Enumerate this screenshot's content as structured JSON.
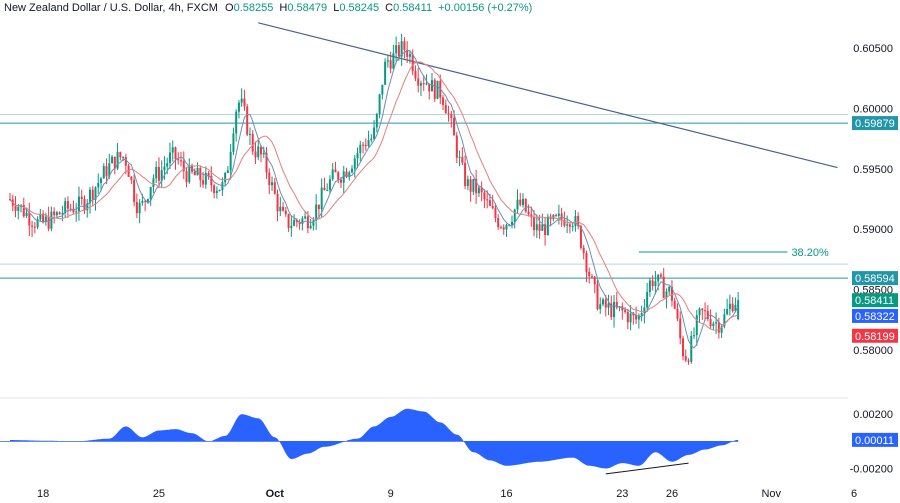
{
  "header": {
    "symbol": "New Zealand Dollar / U.S. Dollar, 4h, FXCM",
    "o_label": "O",
    "o_value": "0.58255",
    "h_label": "H",
    "h_value": "0.58479",
    "l_label": "L",
    "l_value": "0.58245",
    "c_label": "C",
    "c_value": "0.58411",
    "change": "+0.00156 (+0.27%)"
  },
  "colors": {
    "up": "#089981",
    "down": "#f23645",
    "level_line": "#2196a8",
    "trend_line": "#4a6387",
    "ma_fast": "#6b8fb5",
    "ma_slow": "#e57f7f",
    "oscillator": "#2962ff"
  },
  "chart_data": [
    {
      "type": "candlestick",
      "title": "New Zealand Dollar / U.S. Dollar, 4h, FXCM",
      "x_ticks": [
        "18",
        "25",
        "Oct",
        "9",
        "16",
        "23",
        "26",
        "Nov",
        "6"
      ],
      "y_ticks": [
        "0.60500",
        "0.60000",
        "0.59500",
        "0.59000",
        "0.58500",
        "0.58000"
      ],
      "ylim": [
        0.5765,
        0.6075
      ],
      "grid": false,
      "anchors": [
        {
          "x": "Sep 16",
          "price": 0.5925
        },
        {
          "x": "Sep 18",
          "price": 0.5905
        },
        {
          "x": "Sep 20",
          "price": 0.5918
        },
        {
          "x": "Sep 23",
          "price": 0.596
        },
        {
          "x": "Sep 24",
          "price": 0.5918
        },
        {
          "x": "Sep 25",
          "price": 0.5945
        },
        {
          "x": "Sep 26",
          "price": 0.596
        },
        {
          "x": "Sep 27",
          "price": 0.5945
        },
        {
          "x": "Sep 29",
          "price": 0.5935
        },
        {
          "x": "Sep 30",
          "price": 0.6005
        },
        {
          "x": "Oct 1",
          "price": 0.5965
        },
        {
          "x": "Oct 3",
          "price": 0.5905
        },
        {
          "x": "Oct 4",
          "price": 0.5908
        },
        {
          "x": "Oct 6",
          "price": 0.5945
        },
        {
          "x": "Oct 8",
          "price": 0.5975
        },
        {
          "x": "Oct 9",
          "price": 0.604
        },
        {
          "x": "Oct 10",
          "price": 0.605
        },
        {
          "x": "Oct 11",
          "price": 0.6025
        },
        {
          "x": "Oct 12",
          "price": 0.6015
        },
        {
          "x": "Oct 14",
          "price": 0.5935
        },
        {
          "x": "Oct 16",
          "price": 0.5905
        },
        {
          "x": "Oct 17",
          "price": 0.592
        },
        {
          "x": "Oct 18",
          "price": 0.59
        },
        {
          "x": "Oct 20",
          "price": 0.591
        },
        {
          "x": "Oct 22",
          "price": 0.5835
        },
        {
          "x": "Oct 23",
          "price": 0.5832
        },
        {
          "x": "Oct 24",
          "price": 0.5825
        },
        {
          "x": "Oct 25",
          "price": 0.5858
        },
        {
          "x": "Oct 26",
          "price": 0.5848
        },
        {
          "x": "Oct 27",
          "price": 0.5795
        },
        {
          "x": "Oct 28",
          "price": 0.583
        },
        {
          "x": "Oct 29",
          "price": 0.5822
        },
        {
          "x": "Oct 30",
          "price": 0.5841
        }
      ],
      "levels": [
        {
          "price": 0.59879,
          "label": "0.59879"
        },
        {
          "price": 0.58594,
          "label": "0.58594"
        }
      ],
      "faint_levels": [
        0.5995,
        0.5871
      ],
      "fib": {
        "label": "38.20%",
        "price": 0.5881,
        "from": "Oct 24",
        "to": "Nov 5"
      },
      "trendline": {
        "from": {
          "x": "Oct 1",
          "price": 0.6071
        },
        "to": {
          "x": "Nov 5",
          "price": 0.5951
        }
      },
      "price_badges": [
        {
          "label": "0.58411",
          "kind": "close"
        },
        {
          "label": "0.58322",
          "kind": "ma_fast"
        },
        {
          "label": "0.58199",
          "kind": "ma_slow"
        }
      ]
    },
    {
      "type": "area",
      "title": "",
      "y_ticks": [
        "0.00200",
        "-0.00200"
      ],
      "ylim": [
        -0.0027,
        0.0029
      ],
      "anchors": [
        {
          "x": "Sep 16",
          "price": 0.0001
        },
        {
          "x": "Sep 18",
          "price": 5e-05
        },
        {
          "x": "Sep 20",
          "price": 0.0
        },
        {
          "x": "Sep 22",
          "price": 0.0002
        },
        {
          "x": "Sep 23",
          "price": 0.0011
        },
        {
          "x": "Sep 24",
          "price": 0.0003
        },
        {
          "x": "Sep 25",
          "price": 0.0008
        },
        {
          "x": "Sep 26",
          "price": 0.0009
        },
        {
          "x": "Sep 27",
          "price": 0.0006
        },
        {
          "x": "Sep 28",
          "price": 0.0
        },
        {
          "x": "Sep 29",
          "price": 0.0004
        },
        {
          "x": "Sep 30",
          "price": 0.002
        },
        {
          "x": "Oct 1",
          "price": 0.0017
        },
        {
          "x": "Oct 2",
          "price": 0.0003
        },
        {
          "x": "Oct 3",
          "price": -0.0013
        },
        {
          "x": "Oct 4",
          "price": -0.0009
        },
        {
          "x": "Oct 5",
          "price": -0.0004
        },
        {
          "x": "Oct 7",
          "price": 0.0002
        },
        {
          "x": "Oct 8",
          "price": 0.0011
        },
        {
          "x": "Oct 9",
          "price": 0.0018
        },
        {
          "x": "Oct 10",
          "price": 0.0024
        },
        {
          "x": "Oct 11",
          "price": 0.0022
        },
        {
          "x": "Oct 12",
          "price": 0.0014
        },
        {
          "x": "Oct 13",
          "price": 0.0005
        },
        {
          "x": "Oct 14",
          "price": -0.0008
        },
        {
          "x": "Oct 15",
          "price": -0.0014
        },
        {
          "x": "Oct 16",
          "price": -0.0018
        },
        {
          "x": "Oct 18",
          "price": -0.0015
        },
        {
          "x": "Oct 20",
          "price": -0.0012
        },
        {
          "x": "Oct 21",
          "price": -0.0018
        },
        {
          "x": "Oct 22",
          "price": -0.002
        },
        {
          "x": "Oct 23",
          "price": -0.0016
        },
        {
          "x": "Oct 24",
          "price": -0.0018
        },
        {
          "x": "Oct 25",
          "price": -0.0008
        },
        {
          "x": "Oct 26",
          "price": -0.0015
        },
        {
          "x": "Oct 27",
          "price": -0.001
        },
        {
          "x": "Oct 28",
          "price": -0.0006
        },
        {
          "x": "Oct 29",
          "price": -0.0003
        },
        {
          "x": "Oct 30",
          "price": 0.00011
        }
      ],
      "current_badge": "0.00011",
      "divergence_line": {
        "from": {
          "x": "Oct 22",
          "price": -0.0024
        },
        "to": {
          "x": "Oct 27",
          "price": -0.0016
        }
      }
    }
  ]
}
